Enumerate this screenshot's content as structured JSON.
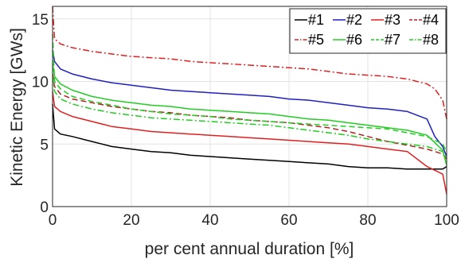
{
  "chart_data": {
    "type": "line",
    "xlabel": "per cent annual duration [%]",
    "ylabel": "Kinetic Energy [GWs]",
    "xlim": [
      0,
      100
    ],
    "ylim": [
      0,
      16
    ],
    "xticks": [
      "0",
      "20",
      "40",
      "60",
      "80",
      "100"
    ],
    "yticks": [
      "0",
      "5",
      "10",
      "15"
    ],
    "grid": true,
    "legend_position": "top-right",
    "legend_columns": 4,
    "series": [
      {
        "name": "#1",
        "color": "#000000",
        "dash": "solid",
        "x": [
          0,
          0.5,
          2,
          5,
          10,
          15,
          20,
          25,
          30,
          35,
          40,
          45,
          50,
          55,
          60,
          65,
          70,
          75,
          80,
          85,
          90,
          95,
          99,
          100
        ],
        "y": [
          8.2,
          6.2,
          5.8,
          5.6,
          5.2,
          4.8,
          4.6,
          4.4,
          4.3,
          4.1,
          4.0,
          3.9,
          3.8,
          3.7,
          3.6,
          3.5,
          3.4,
          3.2,
          3.1,
          3.1,
          3.0,
          3.0,
          3.0,
          3.2
        ]
      },
      {
        "name": "#2",
        "color": "#1f1fbf",
        "dash": "solid",
        "x": [
          0,
          0.5,
          2,
          5,
          10,
          15,
          20,
          25,
          30,
          35,
          40,
          45,
          50,
          55,
          60,
          65,
          70,
          75,
          80,
          85,
          90,
          95,
          97,
          99,
          100
        ],
        "y": [
          12.5,
          11.6,
          11.0,
          10.6,
          10.2,
          9.9,
          9.7,
          9.5,
          9.3,
          9.2,
          9.1,
          9.0,
          8.9,
          8.8,
          8.6,
          8.5,
          8.3,
          8.1,
          7.9,
          7.8,
          7.6,
          7.0,
          5.6,
          4.8,
          4.0
        ]
      },
      {
        "name": "#3",
        "color": "#e02020",
        "dash": "solid",
        "x": [
          0,
          0.5,
          2,
          5,
          10,
          15,
          20,
          25,
          30,
          35,
          40,
          45,
          50,
          55,
          60,
          65,
          70,
          75,
          80,
          85,
          90,
          95,
          99,
          99.5,
          100
        ],
        "y": [
          9.2,
          8.0,
          7.6,
          7.2,
          6.8,
          6.4,
          6.2,
          6.0,
          5.9,
          5.8,
          5.7,
          5.6,
          5.5,
          5.4,
          5.3,
          5.2,
          5.1,
          5.0,
          4.8,
          4.6,
          4.4,
          3.2,
          2.6,
          1.8,
          1.0
        ]
      },
      {
        "name": "#4",
        "color": "#b22222",
        "dash": "dash",
        "x": [
          0,
          0.5,
          2,
          5,
          10,
          15,
          20,
          25,
          30,
          35,
          40,
          45,
          50,
          55,
          60,
          65,
          70,
          75,
          80,
          85,
          90,
          95,
          99,
          100
        ],
        "y": [
          10.6,
          9.6,
          9.0,
          8.6,
          8.3,
          8.0,
          7.8,
          7.6,
          7.5,
          7.3,
          7.2,
          7.1,
          6.9,
          6.8,
          6.7,
          6.5,
          6.3,
          6.0,
          5.6,
          5.2,
          4.9,
          4.6,
          4.2,
          3.8
        ]
      },
      {
        "name": "#5",
        "color": "#e02020",
        "dash": "dashdot",
        "x": [
          0,
          0.5,
          2,
          5,
          10,
          15,
          20,
          25,
          30,
          35,
          40,
          45,
          50,
          55,
          60,
          65,
          70,
          75,
          80,
          85,
          90,
          95,
          97,
          99,
          100
        ],
        "y": [
          16.0,
          13.4,
          13.0,
          12.7,
          12.4,
          12.2,
          12.0,
          11.9,
          11.8,
          11.6,
          11.5,
          11.4,
          11.3,
          11.2,
          11.1,
          11.0,
          10.8,
          10.6,
          10.5,
          10.4,
          10.2,
          9.8,
          9.4,
          8.5,
          7.0
        ]
      },
      {
        "name": "#6",
        "color": "#22cc22",
        "dash": "solid",
        "x": [
          0,
          0.5,
          2,
          5,
          10,
          15,
          20,
          25,
          30,
          35,
          40,
          45,
          50,
          55,
          60,
          65,
          70,
          75,
          80,
          85,
          90,
          95,
          99,
          100
        ],
        "y": [
          11.4,
          10.4,
          9.8,
          9.3,
          8.8,
          8.5,
          8.3,
          8.1,
          8.0,
          7.8,
          7.7,
          7.6,
          7.5,
          7.4,
          7.2,
          7.0,
          6.9,
          6.7,
          6.5,
          6.3,
          6.1,
          5.7,
          4.5,
          3.3
        ]
      },
      {
        "name": "#7",
        "color": "#22cc22",
        "dash": "dash",
        "x": [
          0,
          0.5,
          2,
          5,
          10,
          15,
          20,
          25,
          30,
          35,
          40,
          45,
          50,
          55,
          60,
          65,
          70,
          75,
          80,
          85,
          90,
          95,
          99,
          100
        ],
        "y": [
          13.8,
          10.0,
          9.4,
          8.8,
          8.4,
          8.1,
          7.8,
          7.6,
          7.4,
          7.3,
          7.2,
          7.0,
          6.9,
          6.8,
          6.7,
          6.6,
          6.5,
          6.4,
          6.3,
          6.2,
          5.9,
          5.6,
          5.0,
          4.4
        ]
      },
      {
        "name": "#8",
        "color": "#22cc22",
        "dash": "dashdot",
        "x": [
          0,
          0.5,
          2,
          5,
          10,
          15,
          20,
          25,
          30,
          35,
          40,
          45,
          50,
          55,
          60,
          65,
          70,
          75,
          80,
          85,
          90,
          95,
          99,
          100
        ],
        "y": [
          10.4,
          9.2,
          8.6,
          8.2,
          7.8,
          7.5,
          7.3,
          7.1,
          7.0,
          6.9,
          6.8,
          6.7,
          6.6,
          6.5,
          6.3,
          6.1,
          5.9,
          5.7,
          5.4,
          5.2,
          5.0,
          4.8,
          4.4,
          3.9
        ]
      }
    ]
  }
}
